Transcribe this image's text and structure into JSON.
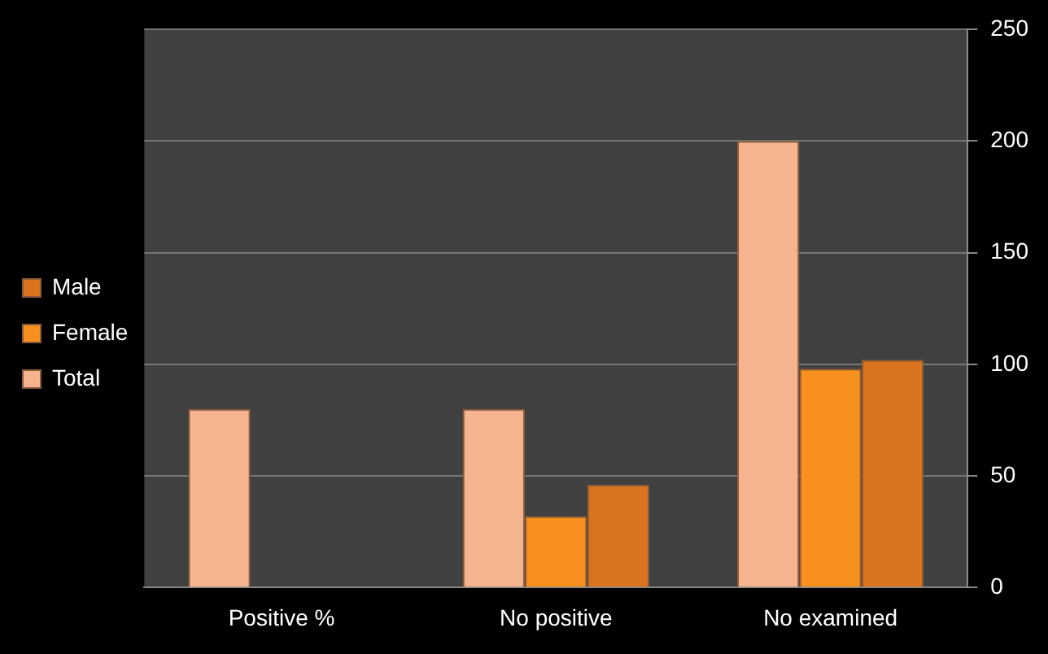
{
  "chart_data": {
    "type": "bar",
    "categories": [
      "Positive %",
      "No positive",
      "No examined"
    ],
    "series": [
      {
        "name": "Total",
        "color": "#f6b38f",
        "values": [
          80,
          80,
          200
        ]
      },
      {
        "name": "Female",
        "color": "#f7901e",
        "values": [
          null,
          32,
          98
        ]
      },
      {
        "name": "Male",
        "color": "#d9731d",
        "values": [
          null,
          46,
          102
        ]
      }
    ],
    "ylim": [
      0,
      250
    ],
    "yticks": [
      0,
      50,
      100,
      150,
      200,
      250
    ],
    "grid": "y",
    "legend": "left"
  }
}
